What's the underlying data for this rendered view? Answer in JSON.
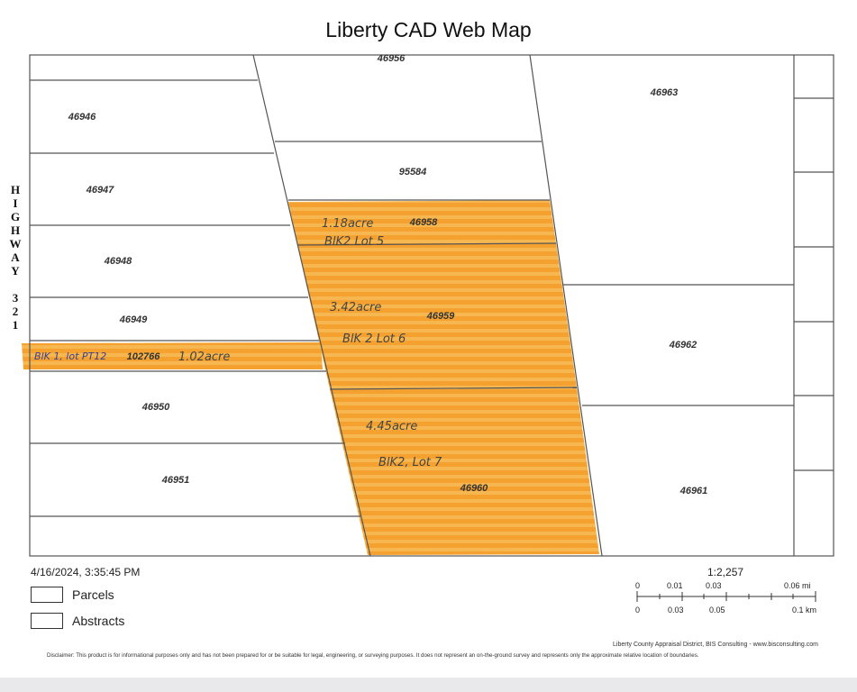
{
  "map": {
    "title": "Liberty CAD Web Map",
    "highway_letters": [
      "H",
      "I",
      "G",
      "H",
      "W",
      "A",
      "Y",
      "",
      "3",
      "2",
      "1"
    ],
    "parcels": [
      {
        "id": "p46956",
        "label": "46956"
      },
      {
        "id": "p46946",
        "label": "46946"
      },
      {
        "id": "p46963",
        "label": "46963"
      },
      {
        "id": "p95584",
        "label": "95584"
      },
      {
        "id": "p46947",
        "label": "46947"
      },
      {
        "id": "p46958",
        "label": "46958"
      },
      {
        "id": "p46948",
        "label": "46948"
      },
      {
        "id": "p46949",
        "label": "46949"
      },
      {
        "id": "p46959",
        "label": "46959"
      },
      {
        "id": "p102766",
        "label": "102766"
      },
      {
        "id": "p46962",
        "label": "46962"
      },
      {
        "id": "p46950",
        "label": "46950"
      },
      {
        "id": "p46951",
        "label": "46951"
      },
      {
        "id": "p46960",
        "label": "46960"
      },
      {
        "id": "p46961",
        "label": "46961"
      }
    ],
    "handwritten_notes": [
      {
        "id": "n1",
        "text": "1.18acre",
        "color": "#444444"
      },
      {
        "id": "n2",
        "text": "BlK2 Lot 5",
        "color": "#444444"
      },
      {
        "id": "n3",
        "text": "3.42acre",
        "color": "#444444"
      },
      {
        "id": "n4",
        "text": "BlK 2 Lot 6",
        "color": "#444444"
      },
      {
        "id": "n5",
        "text": "BlK 1, lot PT12",
        "color": "#3a3f8f"
      },
      {
        "id": "n6",
        "text": "1.02acre",
        "color": "#444444"
      },
      {
        "id": "n7",
        "text": "4.45acre",
        "color": "#444444"
      },
      {
        "id": "n8",
        "text": "BlK2, Lot 7",
        "color": "#444444"
      }
    ],
    "highlight_color": "#f5a02a"
  },
  "footer": {
    "timestamp": "4/16/2024, 3:35:45 PM",
    "legend": [
      {
        "label": "Parcels"
      },
      {
        "label": "Abstracts"
      }
    ],
    "scale": {
      "ratio": "1:2,257",
      "top_labels": [
        "0",
        "0.01",
        "0.03",
        "0.06 mi"
      ],
      "bottom_labels": [
        "0",
        "0.03",
        "0.05",
        "0.1 km"
      ]
    },
    "credit": "Liberty County Appraisal District, BIS Consulting - www.bisconsulting.com",
    "disclaimer": "Disclaimer: This product is for informational purposes only and has not been prepared for or be suitable for legal, engineering, or surveying purposes. It does not represent an on-the-ground survey and represents only the approximate relative location of boundaries."
  }
}
